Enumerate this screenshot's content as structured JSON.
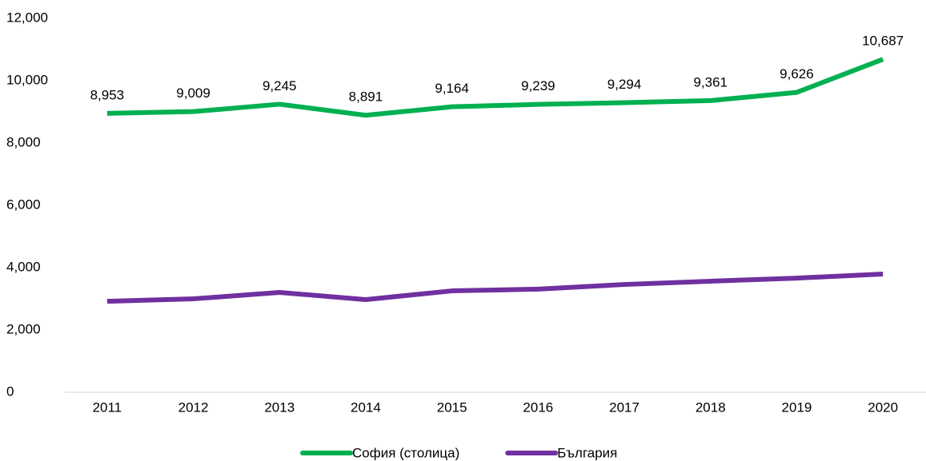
{
  "chart_data": {
    "type": "line",
    "categories": [
      "2011",
      "2012",
      "2013",
      "2014",
      "2015",
      "2016",
      "2017",
      "2018",
      "2019",
      "2020"
    ],
    "series": [
      {
        "name": "София (столица)",
        "color": "#00b050",
        "values": [
          8953,
          9009,
          9245,
          8891,
          9164,
          9239,
          9294,
          9361,
          9626,
          10687
        ],
        "value_labels": [
          "8,953",
          "9,009",
          "9,245",
          "8,891",
          "9,164",
          "9,239",
          "9,294",
          "9,361",
          "9,626",
          "10,687"
        ]
      },
      {
        "name": "България",
        "color": "#7030a0",
        "values": [
          2920,
          3000,
          3205,
          2975,
          3255,
          3310,
          3460,
          3565,
          3665,
          3795
        ]
      }
    ],
    "ylim": [
      0,
      12000
    ],
    "yticks": [
      0,
      {
        "value": 2000,
        "label": "2,000"
      },
      {
        "value": 4000,
        "label": "4,000"
      },
      {
        "value": 6000,
        "label": "6,000"
      },
      {
        "value": 8000,
        "label": "8,000"
      },
      {
        "value": 10000,
        "label": "10,000"
      },
      {
        "value": 12000,
        "label": "12,000"
      }
    ],
    "legend": "bottom"
  }
}
